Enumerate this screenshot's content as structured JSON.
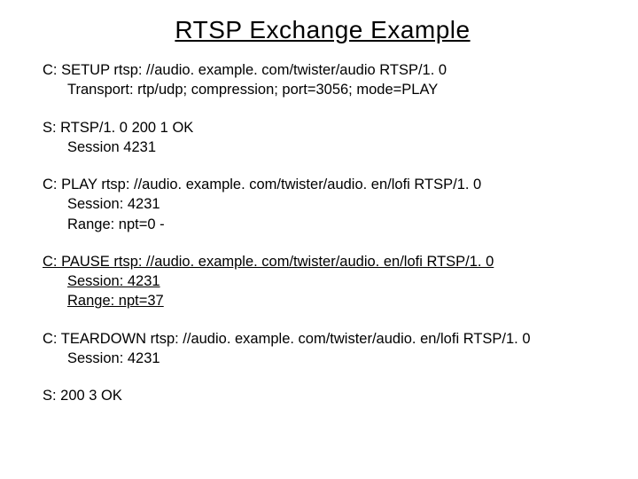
{
  "title": "RTSP Exchange Example",
  "blocks": [
    {
      "underlined": false,
      "lines": [
        "C: SETUP rtsp: //audio. example. com/twister/audio RTSP/1. 0",
        "Transport: rtp/udp; compression; port=3056; mode=PLAY"
      ]
    },
    {
      "underlined": false,
      "lines": [
        "S: RTSP/1. 0 200 1 OK",
        "Session 4231"
      ]
    },
    {
      "underlined": false,
      "lines": [
        "C: PLAY rtsp: //audio. example. com/twister/audio. en/lofi RTSP/1. 0",
        "Session: 4231",
        "Range: npt=0 -"
      ]
    },
    {
      "underlined": true,
      "lines": [
        "C: PAUSE rtsp: //audio. example. com/twister/audio. en/lofi RTSP/1. 0",
        "Session: 4231",
        "Range: npt=37"
      ]
    },
    {
      "underlined": false,
      "lines": [
        "C: TEARDOWN rtsp: //audio. example. com/twister/audio. en/lofi RTSP/1. 0",
        "Session: 4231"
      ]
    },
    {
      "underlined": false,
      "lines": [
        "S: 200 3 OK"
      ]
    }
  ]
}
